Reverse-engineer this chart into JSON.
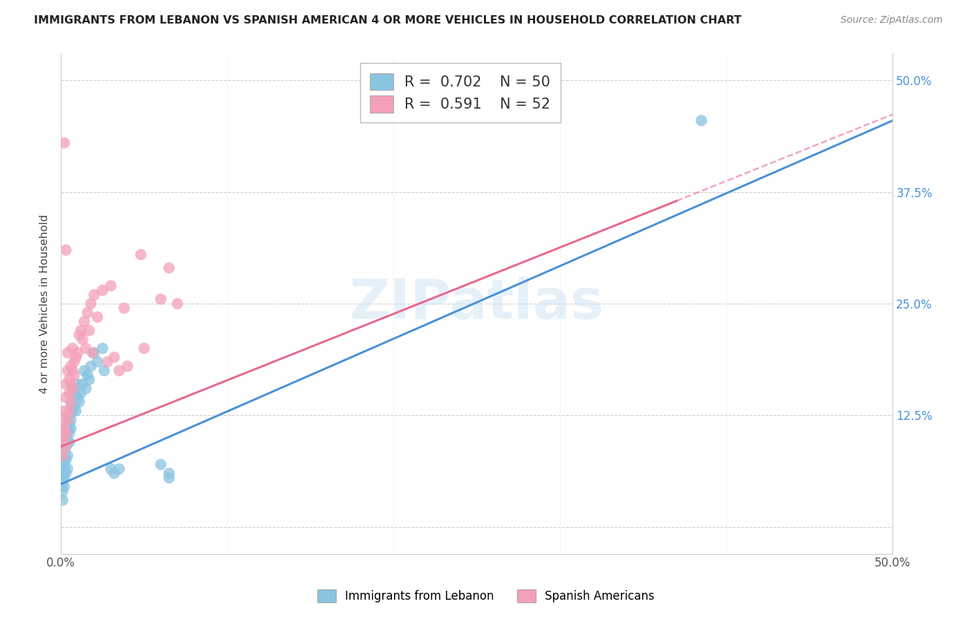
{
  "title": "IMMIGRANTS FROM LEBANON VS SPANISH AMERICAN 4 OR MORE VEHICLES IN HOUSEHOLD CORRELATION CHART",
  "source": "Source: ZipAtlas.com",
  "ylabel": "4 or more Vehicles in Household",
  "xlim": [
    0.0,
    0.5
  ],
  "ylim": [
    -0.03,
    0.53
  ],
  "yticks": [
    0.0,
    0.125,
    0.25,
    0.375,
    0.5
  ],
  "ytick_labels_right": [
    "",
    "12.5%",
    "25.0%",
    "37.5%",
    "50.0%"
  ],
  "xticks": [
    0.0,
    0.1,
    0.2,
    0.3,
    0.4,
    0.5
  ],
  "xtick_labels": [
    "0.0%",
    "",
    "",
    "",
    "",
    "50.0%"
  ],
  "legend_blue_r": "0.702",
  "legend_blue_n": "50",
  "legend_pink_r": "0.591",
  "legend_pink_n": "52",
  "legend_label_blue": "Immigrants from Lebanon",
  "legend_label_pink": "Spanish Americans",
  "watermark": "ZIPatlas",
  "blue_color": "#89c4e1",
  "pink_color": "#f4a0b8",
  "blue_line_color": "#4a90d9",
  "pink_line_color": "#e8688a",
  "blue_line": [
    [
      0.0,
      0.048
    ],
    [
      0.5,
      0.455
    ]
  ],
  "pink_line_solid": [
    [
      0.0,
      0.09
    ],
    [
      0.37,
      0.365
    ]
  ],
  "pink_line_dash": [
    [
      0.37,
      0.365
    ],
    [
      0.5,
      0.462
    ]
  ],
  "blue_scatter_x": [
    0.001,
    0.001,
    0.001,
    0.001,
    0.002,
    0.002,
    0.002,
    0.002,
    0.002,
    0.003,
    0.003,
    0.003,
    0.003,
    0.004,
    0.004,
    0.004,
    0.004,
    0.005,
    0.005,
    0.005,
    0.005,
    0.006,
    0.006,
    0.006,
    0.007,
    0.007,
    0.008,
    0.008,
    0.009,
    0.01,
    0.01,
    0.011,
    0.012,
    0.013,
    0.014,
    0.015,
    0.016,
    0.017,
    0.018,
    0.02,
    0.022,
    0.025,
    0.026,
    0.03,
    0.032,
    0.035,
    0.06,
    0.065,
    0.065,
    0.385
  ],
  "blue_scatter_y": [
    0.05,
    0.06,
    0.04,
    0.03,
    0.07,
    0.055,
    0.045,
    0.08,
    0.065,
    0.075,
    0.06,
    0.09,
    0.1,
    0.08,
    0.095,
    0.11,
    0.065,
    0.095,
    0.115,
    0.105,
    0.125,
    0.11,
    0.12,
    0.14,
    0.13,
    0.155,
    0.135,
    0.15,
    0.13,
    0.145,
    0.16,
    0.14,
    0.15,
    0.16,
    0.175,
    0.155,
    0.17,
    0.165,
    0.18,
    0.195,
    0.185,
    0.2,
    0.175,
    0.065,
    0.06,
    0.065,
    0.07,
    0.06,
    0.055,
    0.455
  ],
  "pink_scatter_x": [
    0.001,
    0.001,
    0.001,
    0.002,
    0.002,
    0.002,
    0.003,
    0.003,
    0.003,
    0.003,
    0.003,
    0.004,
    0.004,
    0.004,
    0.005,
    0.005,
    0.005,
    0.006,
    0.006,
    0.006,
    0.007,
    0.007,
    0.007,
    0.008,
    0.008,
    0.009,
    0.01,
    0.011,
    0.012,
    0.013,
    0.014,
    0.015,
    0.016,
    0.017,
    0.018,
    0.019,
    0.02,
    0.022,
    0.025,
    0.028,
    0.03,
    0.032,
    0.035,
    0.038,
    0.04,
    0.048,
    0.05,
    0.06,
    0.065,
    0.07,
    0.003,
    0.002
  ],
  "pink_scatter_y": [
    0.095,
    0.115,
    0.08,
    0.11,
    0.13,
    0.1,
    0.105,
    0.125,
    0.145,
    0.16,
    0.09,
    0.12,
    0.175,
    0.195,
    0.13,
    0.15,
    0.165,
    0.14,
    0.18,
    0.16,
    0.155,
    0.175,
    0.2,
    0.17,
    0.185,
    0.19,
    0.195,
    0.215,
    0.22,
    0.21,
    0.23,
    0.2,
    0.24,
    0.22,
    0.25,
    0.195,
    0.26,
    0.235,
    0.265,
    0.185,
    0.27,
    0.19,
    0.175,
    0.245,
    0.18,
    0.305,
    0.2,
    0.255,
    0.29,
    0.25,
    0.31,
    0.43
  ]
}
